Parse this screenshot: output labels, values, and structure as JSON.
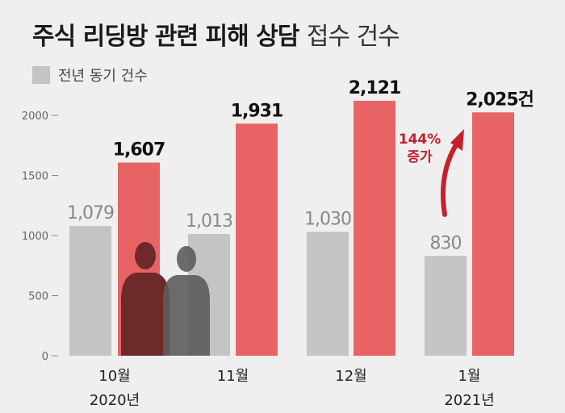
{
  "title": {
    "main": "주식 리딩방 관련 피해 상담",
    "sub": "접수 건수"
  },
  "legend": {
    "prev_label": "전년 동기 건수"
  },
  "colors": {
    "prev": "#c4c4c4",
    "cur": "#e86464",
    "accent": "#c4212b",
    "silhouette_dark": "#6e2a2a",
    "silhouette_grey": "#5c5c5c"
  },
  "chart_data": {
    "type": "bar",
    "categories": [
      "10월",
      "11월",
      "12월",
      "1월"
    ],
    "year_labels": [
      "2020년",
      "",
      "",
      "2021년"
    ],
    "series": [
      {
        "values": [
          1079,
          1013,
          1030,
          830
        ],
        "labels": [
          "1,079",
          "1,013",
          "1,030",
          "830"
        ]
      },
      {
        "values": [
          1607,
          1931,
          2121,
          2025
        ],
        "labels": [
          "1,607",
          "1,931",
          "2,121",
          "2,025건"
        ]
      }
    ],
    "yticks": [
      0,
      500,
      1000,
      1500,
      2000
    ],
    "ytick_labels": [
      "0",
      "500",
      "1000",
      "1500",
      "2000"
    ],
    "ylim": [
      0,
      2200
    ],
    "grid": false,
    "annotation": {
      "lines": [
        "144%",
        "증가"
      ]
    }
  }
}
